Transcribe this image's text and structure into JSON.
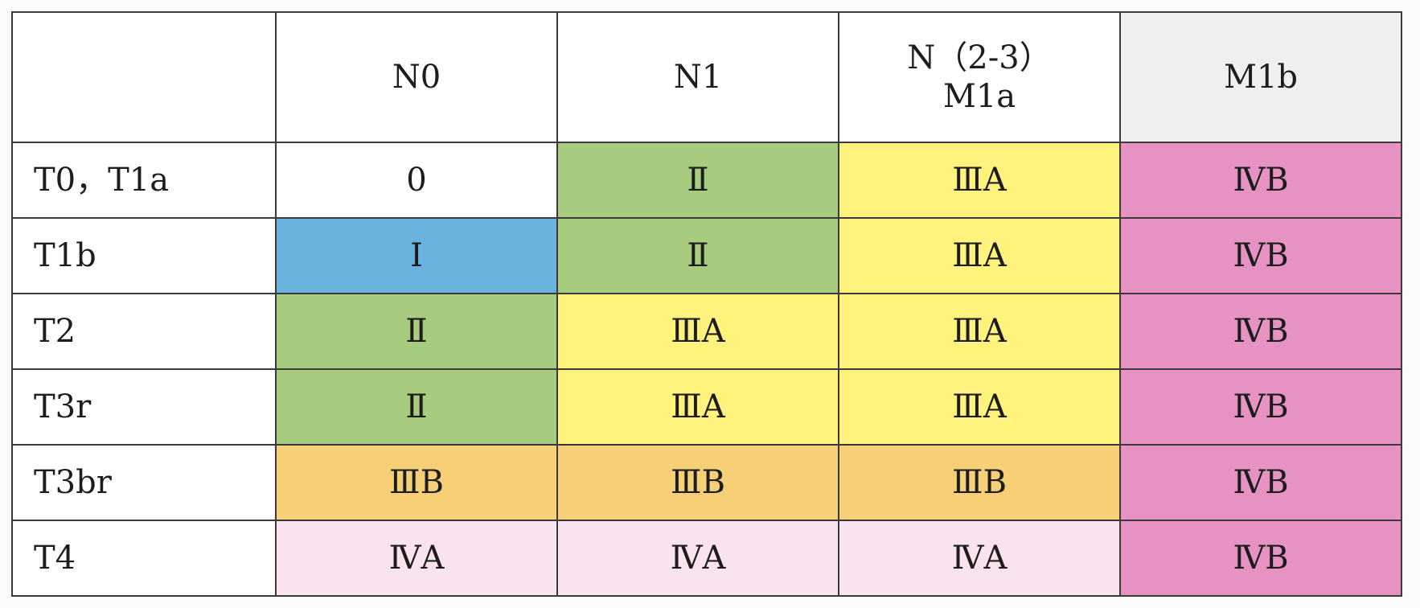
{
  "colors": {
    "0": "#ffffff",
    "I": "#68b2dd",
    "II": "#a7cc7f",
    "IIIA": "#fff27d",
    "IIIB": "#f6cf77",
    "IVA": "#f9e3ef",
    "IVB": "#e693c3",
    "header_last": "#efefef"
  },
  "table": {
    "corner": "",
    "headers": [
      {
        "lines": [
          "N0"
        ]
      },
      {
        "lines": [
          "N1"
        ]
      },
      {
        "lines": [
          "N（2-3）",
          "M1a"
        ]
      },
      {
        "lines": [
          "M1b"
        ]
      }
    ],
    "rows": [
      {
        "label": "T0，T1a",
        "cells": [
          {
            "text": "0",
            "stage": "0"
          },
          {
            "text": "Ⅱ",
            "stage": "II"
          },
          {
            "text": "ⅢA",
            "stage": "IIIA"
          },
          {
            "text": "ⅣB",
            "stage": "IVB"
          }
        ]
      },
      {
        "label": "T1b",
        "cells": [
          {
            "text": "Ⅰ",
            "stage": "I"
          },
          {
            "text": "Ⅱ",
            "stage": "II"
          },
          {
            "text": "ⅢA",
            "stage": "IIIA"
          },
          {
            "text": "ⅣB",
            "stage": "IVB"
          }
        ]
      },
      {
        "label": "T2",
        "cells": [
          {
            "text": "Ⅱ",
            "stage": "II"
          },
          {
            "text": "ⅢA",
            "stage": "IIIA"
          },
          {
            "text": "ⅢA",
            "stage": "IIIA"
          },
          {
            "text": "ⅣB",
            "stage": "IVB"
          }
        ]
      },
      {
        "label": "T3r",
        "cells": [
          {
            "text": "Ⅱ",
            "stage": "II"
          },
          {
            "text": "ⅢA",
            "stage": "IIIA"
          },
          {
            "text": "ⅢA",
            "stage": "IIIA"
          },
          {
            "text": "ⅣB",
            "stage": "IVB"
          }
        ]
      },
      {
        "label": "T3br",
        "cells": [
          {
            "text": "ⅢB",
            "stage": "IIIB"
          },
          {
            "text": "ⅢB",
            "stage": "IIIB"
          },
          {
            "text": "ⅢB",
            "stage": "IIIB"
          },
          {
            "text": "ⅣB",
            "stage": "IVB"
          }
        ]
      },
      {
        "label": "T4",
        "cells": [
          {
            "text": "ⅣA",
            "stage": "IVA"
          },
          {
            "text": "ⅣA",
            "stage": "IVA"
          },
          {
            "text": "ⅣA",
            "stage": "IVA"
          },
          {
            "text": "ⅣB",
            "stage": "IVB"
          }
        ]
      }
    ]
  }
}
